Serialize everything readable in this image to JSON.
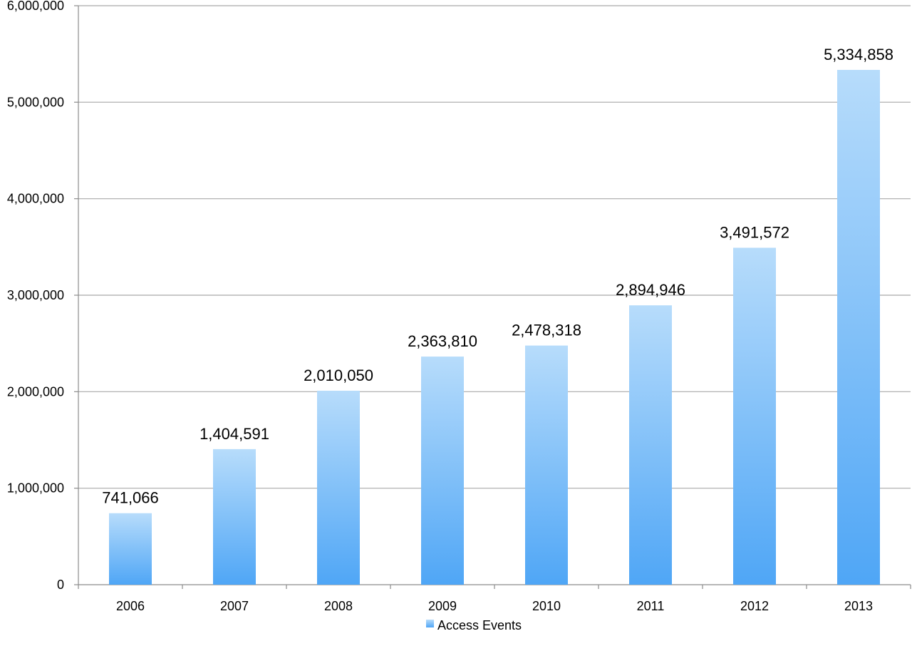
{
  "chart_data": {
    "type": "bar",
    "categories": [
      "2006",
      "2007",
      "2008",
      "2009",
      "2010",
      "2011",
      "2012",
      "2013"
    ],
    "series": [
      {
        "name": "Access Events",
        "values": [
          741066,
          1404591,
          2010050,
          2363810,
          2478318,
          2894946,
          3491572,
          5334858
        ],
        "data_labels": [
          "741,066",
          "1,404,591",
          "2,010,050",
          "2,363,810",
          "2,478,318",
          "2,894,946",
          "3,491,572",
          "5,334,858"
        ]
      }
    ],
    "ylim": [
      0,
      6000000
    ],
    "yticks": [
      0,
      1000000,
      2000000,
      3000000,
      4000000,
      5000000,
      6000000
    ],
    "ytick_labels": [
      "0",
      "1,000,000",
      "2,000,000",
      "3,000,000",
      "4,000,000",
      "5,000,000",
      "6,000,000"
    ],
    "grid": true,
    "legend": {
      "position": "bottom",
      "label": "Access Events"
    },
    "colors": {
      "bar_top": "#b7dcfb",
      "bar_bottom": "#4fa6f6",
      "grid": "#a9a9a9",
      "axis": "#8c8c8c"
    }
  }
}
